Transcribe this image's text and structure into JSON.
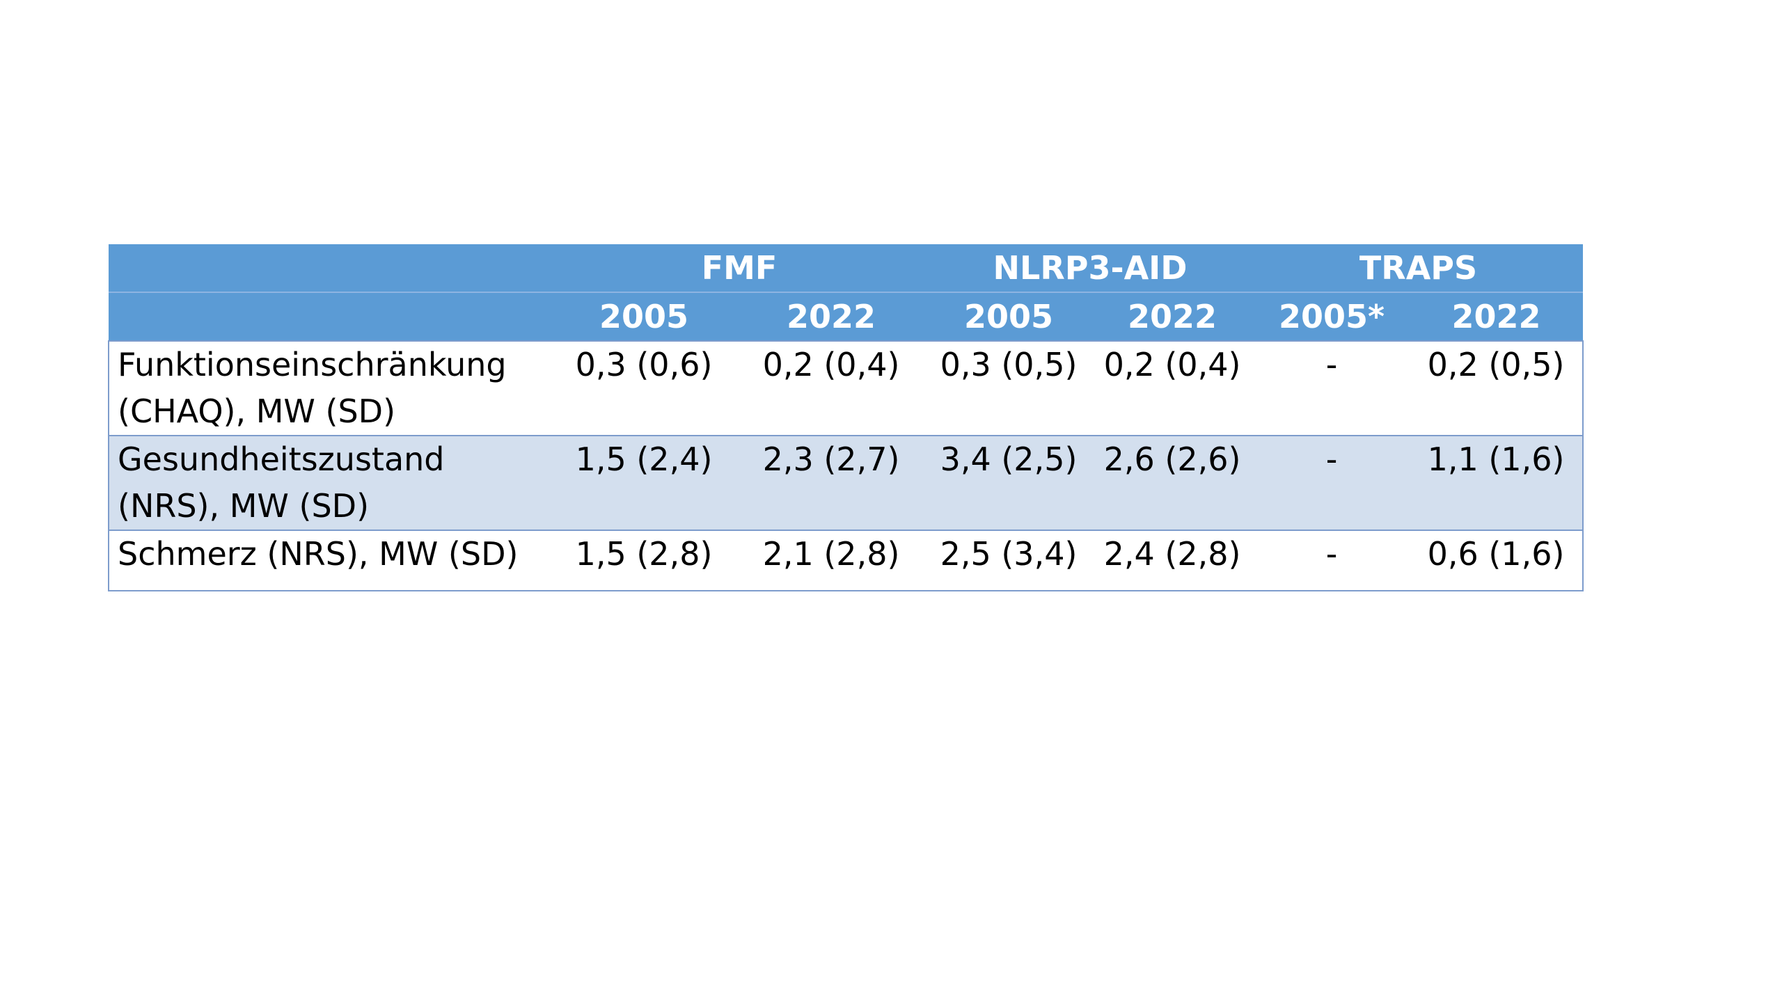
{
  "table": {
    "groups": [
      "FMF",
      "NLRP3-AID",
      "TRAPS"
    ],
    "years": [
      "2005",
      "2022",
      "2005",
      "2022",
      "2005*",
      "2022"
    ],
    "rows": [
      {
        "label": "Funktionseinschränkung (CHAQ), MW (SD)",
        "values": [
          "0,3 (0,6)",
          "0,2 (0,4)",
          "0,3 (0,5)",
          "0,2 (0,4)",
          "-",
          "0,2 (0,5)"
        ]
      },
      {
        "label": "Gesundheitszustand (NRS), MW (SD)",
        "values": [
          "1,5 (2,4)",
          "2,3 (2,7)",
          "3,4 (2,5)",
          "2,6 (2,6)",
          "-",
          "1,1 (1,6)"
        ]
      },
      {
        "label": "Schmerz (NRS), MW (SD)",
        "values": [
          "1,5 (2,8)",
          "2,1 (2,8)",
          "2,5 (3,4)",
          "2,4 (2,8)",
          "-",
          "0,6 (1,6)"
        ]
      }
    ]
  }
}
